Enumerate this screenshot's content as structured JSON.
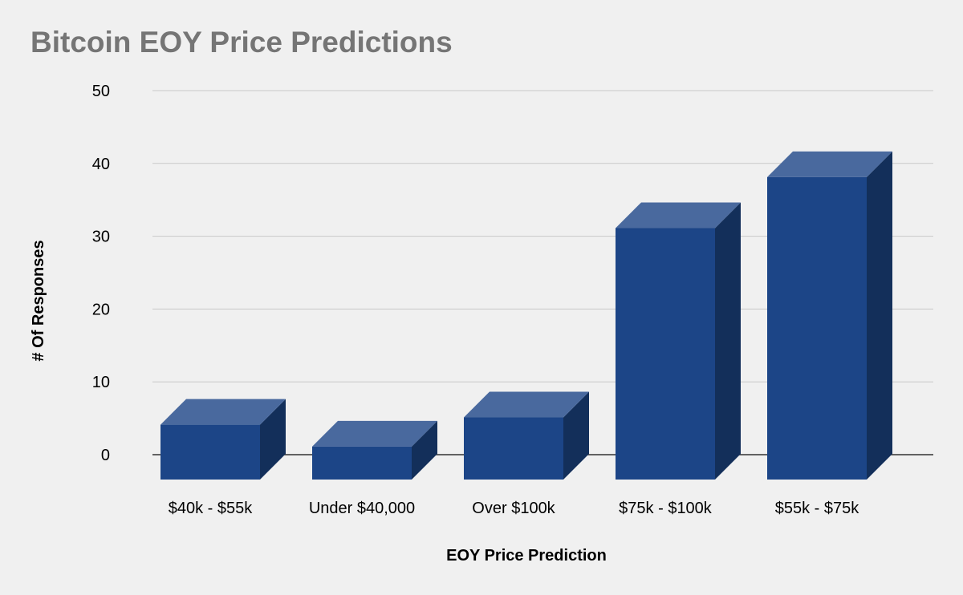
{
  "chart_data": {
    "type": "bar",
    "title": "Bitcoin EOY Price Predictions",
    "xlabel": "EOY Price Prediction",
    "ylabel": "# Of Responses",
    "categories": [
      "$40k - $55k",
      "Under $40,000",
      "Over $100k",
      "$75k - $100k",
      "$55k - $75k"
    ],
    "values": [
      5,
      2,
      6,
      32,
      39
    ],
    "ylim": [
      0,
      50
    ],
    "yticks": [
      "0",
      "10",
      "20",
      "30",
      "40",
      "50"
    ],
    "grid": true,
    "legend": "none",
    "colors": {
      "bar_front": "#1c4587",
      "bar_top": "#49699e",
      "bar_side": "#132f5a",
      "gridline": "#c8c8c8",
      "baseline": "#333333",
      "title": "#757575"
    }
  }
}
